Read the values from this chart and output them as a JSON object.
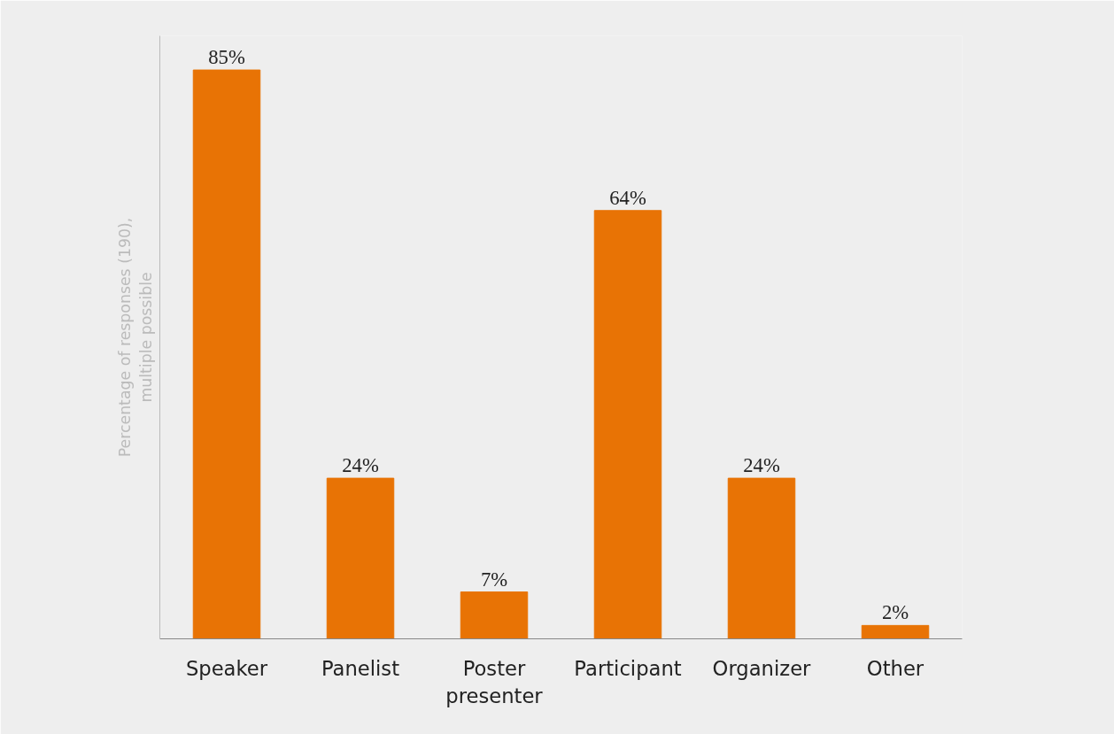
{
  "chart_data": {
    "type": "bar",
    "ylabel": "Percentage of responses (190), multiple possible",
    "categories": [
      "Speaker",
      "Panelist",
      "Poster presenter",
      "Participant",
      "Organizer",
      "Other"
    ],
    "values": [
      85,
      24,
      7,
      64,
      24,
      2
    ],
    "value_labels": [
      "85%",
      "24%",
      "7%",
      "64%",
      "24%",
      "2%"
    ],
    "color": "#e87305",
    "grid": false
  }
}
